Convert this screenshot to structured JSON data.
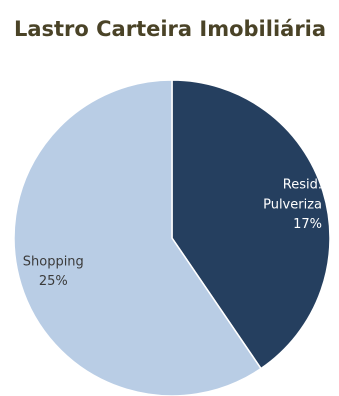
{
  "chart_data": {
    "type": "pie",
    "title": "Lastro Carteira Imobiliária",
    "categories": [
      "Resid. Pulveriza",
      "Shopping"
    ],
    "values": [
      17,
      25
    ],
    "value_labels": [
      "17%",
      "25%"
    ],
    "colors": [
      "#253f5f",
      "#b9cde5"
    ],
    "label_colors": [
      "#ffffff",
      "#3b3b3b"
    ]
  }
}
